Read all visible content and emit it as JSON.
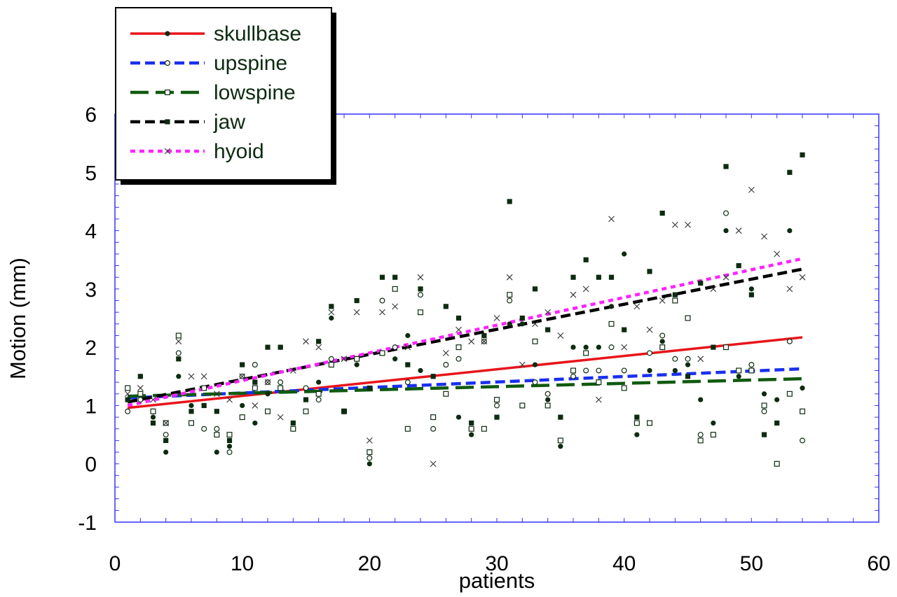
{
  "chart_data": {
    "type": "scatter",
    "xlabel": "patients",
    "ylabel": "Motion (mm)",
    "xlim": [
      0,
      60
    ],
    "ylim": [
      -1,
      6
    ],
    "xticks": [
      "0",
      "10",
      "20",
      "30",
      "40",
      "50",
      "60"
    ],
    "yticks": [
      "-1",
      "0",
      "1",
      "2",
      "3",
      "4",
      "5",
      "6"
    ],
    "grid": false,
    "legend_position": "top-left",
    "frame_color": "#3333ff",
    "series": [
      {
        "name": "skullbase",
        "color": "#e8151b",
        "dash": "solid",
        "marker": "filled-circle",
        "trend": [
          [
            1,
            0.96
          ],
          [
            54,
            2.17
          ]
        ],
        "points": [
          [
            1,
            1.1
          ],
          [
            2,
            1.1
          ],
          [
            3,
            0.8
          ],
          [
            4,
            0.2
          ],
          [
            5,
            1.5
          ],
          [
            6,
            1.0
          ],
          [
            7,
            1.3
          ],
          [
            8,
            0.2
          ],
          [
            9,
            0.3
          ],
          [
            10,
            1.0
          ],
          [
            11,
            0.7
          ],
          [
            12,
            1.2
          ],
          [
            13,
            2.0
          ],
          [
            14,
            0.7
          ],
          [
            15,
            1.3
          ],
          [
            16,
            1.4
          ],
          [
            17,
            2.5
          ],
          [
            18,
            0.9
          ],
          [
            19,
            1.7
          ],
          [
            20,
            0.0
          ],
          [
            21,
            1.9
          ],
          [
            22,
            1.8
          ],
          [
            23,
            2.2
          ],
          [
            24,
            1.6
          ],
          [
            25,
            1.5
          ],
          [
            26,
            1.2
          ],
          [
            27,
            0.8
          ],
          [
            28,
            0.5
          ],
          [
            29,
            2.2
          ],
          [
            30,
            0.8
          ],
          [
            31,
            2.4
          ],
          [
            32,
            2.4
          ],
          [
            33,
            1.7
          ],
          [
            34,
            1.1
          ],
          [
            35,
            0.3
          ],
          [
            36,
            2.0
          ],
          [
            37,
            2.0
          ],
          [
            38,
            2.0
          ],
          [
            39,
            2.7
          ],
          [
            40,
            3.6
          ],
          [
            41,
            0.5
          ],
          [
            42,
            1.6
          ],
          [
            43,
            2.1
          ],
          [
            44,
            1.6
          ],
          [
            45,
            1.7
          ],
          [
            46,
            1.1
          ],
          [
            47,
            0.7
          ],
          [
            48,
            4.0
          ],
          [
            49,
            1.5
          ],
          [
            50,
            3.0
          ],
          [
            51,
            1.2
          ],
          [
            52,
            1.1
          ],
          [
            53,
            4.0
          ],
          [
            54,
            1.3
          ]
        ]
      },
      {
        "name": "upspine",
        "color": "#1a2ff0",
        "dash": "dashed",
        "marker": "open-circle",
        "trend": [
          [
            1,
            1.13
          ],
          [
            54,
            1.63
          ]
        ],
        "points": [
          [
            1,
            0.9
          ],
          [
            2,
            1.1
          ],
          [
            3,
            0.9
          ],
          [
            4,
            0.5
          ],
          [
            5,
            1.9
          ],
          [
            6,
            0.7
          ],
          [
            7,
            0.6
          ],
          [
            8,
            0.6
          ],
          [
            9,
            0.2
          ],
          [
            10,
            1.5
          ],
          [
            11,
            1.7
          ],
          [
            12,
            1.4
          ],
          [
            13,
            1.4
          ],
          [
            14,
            0.6
          ],
          [
            15,
            1.3
          ],
          [
            16,
            1.1
          ],
          [
            17,
            1.8
          ],
          [
            18,
            0.9
          ],
          [
            19,
            1.8
          ],
          [
            20,
            0.1
          ],
          [
            21,
            2.8
          ],
          [
            22,
            2.0
          ],
          [
            23,
            1.4
          ],
          [
            24,
            2.9
          ],
          [
            25,
            0.6
          ],
          [
            26,
            1.7
          ],
          [
            27,
            1.8
          ],
          [
            28,
            0.6
          ],
          [
            29,
            2.1
          ],
          [
            30,
            1.0
          ],
          [
            31,
            2.8
          ],
          [
            32,
            1.0
          ],
          [
            33,
            1.4
          ],
          [
            34,
            1.2
          ],
          [
            35,
            0.4
          ],
          [
            36,
            1.5
          ],
          [
            37,
            1.6
          ],
          [
            38,
            1.6
          ],
          [
            39,
            2.0
          ],
          [
            40,
            1.6
          ],
          [
            41,
            0.7
          ],
          [
            42,
            1.9
          ],
          [
            43,
            2.2
          ],
          [
            44,
            1.8
          ],
          [
            45,
            1.8
          ],
          [
            46,
            0.5
          ],
          [
            47,
            0.5
          ],
          [
            48,
            4.3
          ],
          [
            49,
            1.6
          ],
          [
            50,
            1.7
          ],
          [
            51,
            0.9
          ],
          [
            52,
            0.0
          ],
          [
            53,
            2.1
          ],
          [
            54,
            0.4
          ]
        ]
      },
      {
        "name": "lowspine",
        "color": "#0f5a0f",
        "dash": "long-dash",
        "marker": "open-square",
        "trend": [
          [
            1,
            1.16
          ],
          [
            54,
            1.46
          ]
        ],
        "points": [
          [
            1,
            1.3
          ],
          [
            2,
            1.2
          ],
          [
            3,
            0.9
          ],
          [
            4,
            0.7
          ],
          [
            5,
            2.2
          ],
          [
            6,
            0.7
          ],
          [
            7,
            1.3
          ],
          [
            8,
            0.5
          ],
          [
            9,
            0.5
          ],
          [
            10,
            0.8
          ],
          [
            11,
            1.3
          ],
          [
            12,
            0.9
          ],
          [
            13,
            1.3
          ],
          [
            14,
            0.6
          ],
          [
            15,
            0.9
          ],
          [
            16,
            1.2
          ],
          [
            17,
            1.7
          ],
          [
            18,
            0.9
          ],
          [
            19,
            1.8
          ],
          [
            20,
            0.2
          ],
          [
            21,
            1.9
          ],
          [
            22,
            3.0
          ],
          [
            23,
            0.6
          ],
          [
            24,
            2.6
          ],
          [
            25,
            0.8
          ],
          [
            26,
            1.2
          ],
          [
            27,
            2.0
          ],
          [
            28,
            0.6
          ],
          [
            29,
            0.6
          ],
          [
            30,
            1.1
          ],
          [
            31,
            2.9
          ],
          [
            32,
            1.0
          ],
          [
            33,
            2.1
          ],
          [
            34,
            1.0
          ],
          [
            35,
            0.4
          ],
          [
            36,
            1.6
          ],
          [
            37,
            1.9
          ],
          [
            38,
            1.4
          ],
          [
            39,
            2.4
          ],
          [
            40,
            1.3
          ],
          [
            41,
            0.7
          ],
          [
            42,
            0.7
          ],
          [
            43,
            2.0
          ],
          [
            44,
            2.8
          ],
          [
            45,
            2.5
          ],
          [
            46,
            0.4
          ],
          [
            47,
            0.5
          ],
          [
            48,
            2.0
          ],
          [
            49,
            1.6
          ],
          [
            50,
            1.6
          ],
          [
            51,
            1.0
          ],
          [
            52,
            0.0
          ],
          [
            53,
            1.2
          ],
          [
            54,
            0.9
          ]
        ]
      },
      {
        "name": "jaw",
        "color": "#000000",
        "dash": "dashed",
        "marker": "filled-square",
        "trend": [
          [
            1,
            1.06
          ],
          [
            54,
            3.34
          ]
        ],
        "points": [
          [
            1,
            1.1
          ],
          [
            2,
            1.5
          ],
          [
            3,
            0.7
          ],
          [
            4,
            0.4
          ],
          [
            5,
            1.8
          ],
          [
            6,
            0.9
          ],
          [
            7,
            1.0
          ],
          [
            8,
            0.9
          ],
          [
            9,
            0.4
          ],
          [
            10,
            1.7
          ],
          [
            11,
            1.4
          ],
          [
            12,
            2.0
          ],
          [
            13,
            2.0
          ],
          [
            14,
            0.7
          ],
          [
            15,
            1.1
          ],
          [
            16,
            2.1
          ],
          [
            17,
            2.7
          ],
          [
            18,
            0.9
          ],
          [
            19,
            2.8
          ],
          [
            20,
            1.3
          ],
          [
            21,
            3.2
          ],
          [
            22,
            3.2
          ],
          [
            23,
            1.7
          ],
          [
            24,
            3.0
          ],
          [
            25,
            1.5
          ],
          [
            26,
            2.7
          ],
          [
            27,
            2.5
          ],
          [
            28,
            0.7
          ],
          [
            29,
            2.2
          ],
          [
            30,
            0.8
          ],
          [
            31,
            4.5
          ],
          [
            32,
            2.5
          ],
          [
            33,
            3.0
          ],
          [
            34,
            2.3
          ],
          [
            35,
            0.8
          ],
          [
            36,
            3.2
          ],
          [
            37,
            3.5
          ],
          [
            38,
            3.2
          ],
          [
            39,
            3.2
          ],
          [
            40,
            2.3
          ],
          [
            41,
            0.8
          ],
          [
            42,
            3.3
          ],
          [
            43,
            4.3
          ],
          [
            44,
            2.9
          ],
          [
            45,
            1.5
          ],
          [
            46,
            3.1
          ],
          [
            47,
            2.0
          ],
          [
            48,
            5.1
          ],
          [
            49,
            3.4
          ],
          [
            50,
            2.9
          ],
          [
            51,
            0.5
          ],
          [
            52,
            0.7
          ],
          [
            53,
            5.0
          ],
          [
            54,
            5.3
          ]
        ]
      },
      {
        "name": "hyoid",
        "color": "#ff22ff",
        "dash": "dotted",
        "marker": "cross",
        "trend": [
          [
            1,
            1.0
          ],
          [
            54,
            3.52
          ]
        ],
        "points": [
          [
            1,
            1.2
          ],
          [
            2,
            1.3
          ],
          [
            3,
            1.1
          ],
          [
            4,
            0.7
          ],
          [
            5,
            2.1
          ],
          [
            6,
            1.5
          ],
          [
            7,
            1.5
          ],
          [
            8,
            1.2
          ],
          [
            9,
            1.1
          ],
          [
            10,
            1.5
          ],
          [
            11,
            1.0
          ],
          [
            12,
            1.4
          ],
          [
            13,
            0.8
          ],
          [
            14,
            1.6
          ],
          [
            15,
            2.1
          ],
          [
            16,
            2.0
          ],
          [
            17,
            2.6
          ],
          [
            18,
            1.8
          ],
          [
            19,
            2.6
          ],
          [
            20,
            0.4
          ],
          [
            21,
            2.6
          ],
          [
            22,
            2.7
          ],
          [
            23,
            2.0
          ],
          [
            24,
            3.2
          ],
          [
            25,
            0.0
          ],
          [
            26,
            1.9
          ],
          [
            27,
            2.3
          ],
          [
            28,
            2.1
          ],
          [
            29,
            2.1
          ],
          [
            30,
            2.5
          ],
          [
            31,
            3.2
          ],
          [
            32,
            1.7
          ],
          [
            33,
            2.4
          ],
          [
            34,
            2.6
          ],
          [
            35,
            2.2
          ],
          [
            36,
            2.9
          ],
          [
            37,
            3.0
          ],
          [
            38,
            1.1
          ],
          [
            39,
            4.2
          ],
          [
            40,
            2.0
          ],
          [
            41,
            2.7
          ],
          [
            42,
            2.3
          ],
          [
            43,
            2.8
          ],
          [
            44,
            4.1
          ],
          [
            45,
            4.1
          ],
          [
            46,
            1.8
          ],
          [
            47,
            3.0
          ],
          [
            48,
            3.2
          ],
          [
            49,
            4.0
          ],
          [
            50,
            4.7
          ],
          [
            51,
            3.9
          ],
          [
            52,
            3.6
          ],
          [
            53,
            3.0
          ],
          [
            54,
            3.2
          ]
        ]
      }
    ]
  }
}
